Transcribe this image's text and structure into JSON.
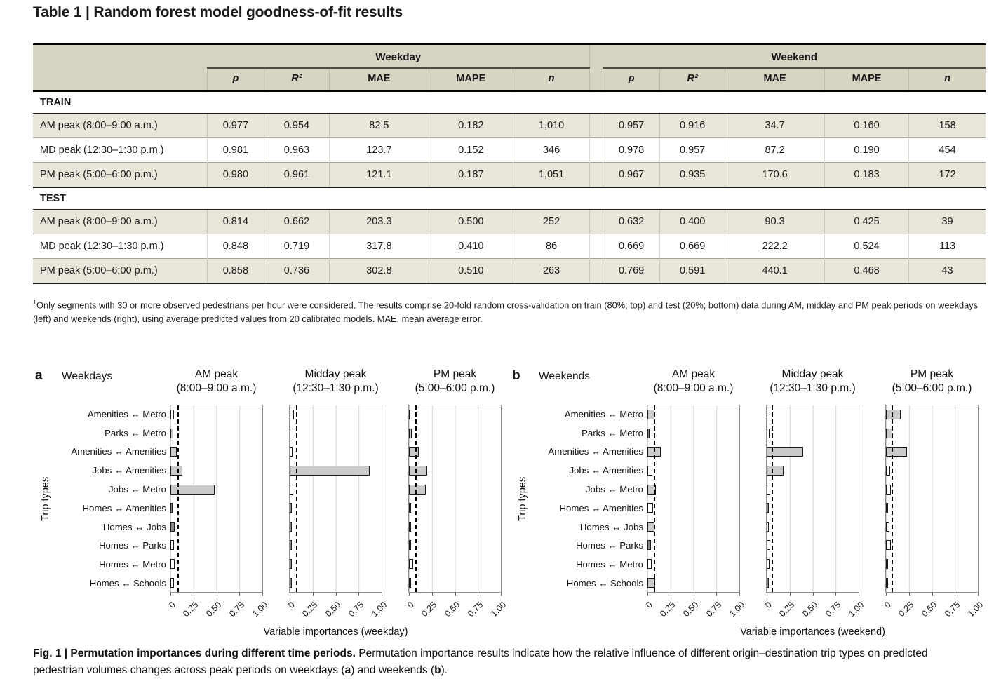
{
  "table": {
    "title": "Table 1 | Random forest model goodness-of-fit results",
    "groups": [
      "Weekday",
      "Weekend"
    ],
    "columns": [
      "ρ",
      "R²",
      "MAE",
      "MAPE",
      "n"
    ],
    "italic_columns": [
      "ρ",
      "R²",
      "n"
    ],
    "sections": [
      {
        "label": "TRAIN",
        "rows": [
          {
            "label": "AM peak (8:00–9:00 a.m.)",
            "shaded": true,
            "weekday": [
              "0.977",
              "0.954",
              "82.5",
              "0.182",
              "1,010"
            ],
            "weekend": [
              "0.957",
              "0.916",
              "34.7",
              "0.160",
              "158"
            ]
          },
          {
            "label": "MD peak (12:30–1:30 p.m.)",
            "shaded": false,
            "weekday": [
              "0.981",
              "0.963",
              "123.7",
              "0.152",
              "346"
            ],
            "weekend": [
              "0.978",
              "0.957",
              "87.2",
              "0.190",
              "454"
            ]
          },
          {
            "label": "PM peak (5:00–6:00 p.m.)",
            "shaded": true,
            "weekday": [
              "0.980",
              "0.961",
              "121.1",
              "0.187",
              "1,051"
            ],
            "weekend": [
              "0.967",
              "0.935",
              "170.6",
              "0.183",
              "172"
            ]
          }
        ]
      },
      {
        "label": "TEST",
        "rows": [
          {
            "label": "AM peak (8:00–9:00 a.m.)",
            "shaded": true,
            "weekday": [
              "0.814",
              "0.662",
              "203.3",
              "0.500",
              "252"
            ],
            "weekend": [
              "0.632",
              "0.400",
              "90.3",
              "0.425",
              "39"
            ]
          },
          {
            "label": "MD peak (12:30–1:30 p.m.)",
            "shaded": false,
            "weekday": [
              "0.848",
              "0.719",
              "317.8",
              "0.410",
              "86"
            ],
            "weekend": [
              "0.669",
              "0.669",
              "222.2",
              "0.524",
              "113"
            ]
          },
          {
            "label": "PM peak (5:00–6:00 p.m.)",
            "shaded": true,
            "weekday": [
              "0.858",
              "0.736",
              "302.8",
              "0.510",
              "263"
            ],
            "weekend": [
              "0.769",
              "0.591",
              "440.1",
              "0.468",
              "43"
            ]
          }
        ]
      }
    ],
    "footnote_sup": "1",
    "footnote_text": "Only segments with 30 or more observed pedestrians per hour were considered. The results comprise 20-fold random cross-validation on train (80%; top) and test (20%; bottom) data during AM, midday and PM peak periods on weekdays (left) and weekends (right), using average predicted values from 20 calibrated models. MAE, mean average error."
  },
  "figure": {
    "ylabel": "Trip types",
    "caption_parts": [
      {
        "text": "Fig. 1 | Permutation importances during different time periods. ",
        "bold": true
      },
      {
        "text": "Permutation importance results indicate how the relative influence of different origin–destination trip types on predicted pedestrian volumes changes across peak periods on weekdays (",
        "bold": false
      },
      {
        "text": "a",
        "bold": true
      },
      {
        "text": ") and weekends (",
        "bold": false
      },
      {
        "text": "b",
        "bold": true
      },
      {
        "text": ").",
        "bold": false
      }
    ]
  },
  "colors": {
    "header_beige": "#d7d4c3",
    "row_shade": "#e9e6da",
    "bar_fills": {
      "white": "#ffffff",
      "gray": "#cbcbcb",
      "dark": "#8a8a8a"
    },
    "bar_border": "#1a1a1a",
    "gridline": "#d2d2d2"
  },
  "chart_data": {
    "type": "bar",
    "orientation": "horizontal",
    "grid": true,
    "xlim": [
      0,
      1
    ],
    "xtick_values": [
      0,
      0.25,
      0.5,
      0.75,
      1.0
    ],
    "xtick_labels": [
      "0",
      "0.25",
      "0.50",
      "0.75",
      "1.00"
    ],
    "categories": [
      "Amenities ↔ Metro",
      "Parks ↔ Metro",
      "Amenities ↔ Amenities",
      "Jobs ↔ Amenities",
      "Jobs ↔ Metro",
      "Homes ↔ Amenities",
      "Homes ↔ Jobs",
      "Homes ↔ Parks",
      "Homes ↔ Metro",
      "Homes ↔ Schools"
    ],
    "panels": [
      {
        "key": "weekdays",
        "letter": "a",
        "name": "Weekdays",
        "xlabel": "Variable importances (weekday)",
        "charts": [
          {
            "key": "am",
            "title": "AM peak",
            "subtitle": "(8:00–9:00 a.m.)",
            "dashed_x": 0.075,
            "values": [
              0.04,
              0.03,
              0.07,
              0.13,
              0.48,
              0.025,
              0.045,
              0.04,
              0.045,
              0.035
            ],
            "fills": [
              "white",
              "gray",
              "gray",
              "gray",
              "gray",
              "dark",
              "dark",
              "white",
              "white",
              "white"
            ]
          },
          {
            "key": "midday",
            "title": "Midday peak",
            "subtitle": "(12:30–1:30 p.m.)",
            "dashed_x": 0.07,
            "values": [
              0.045,
              0.035,
              0.03,
              0.87,
              0.04,
              0.02,
              0.015,
              0.025,
              0.013,
              0.015
            ],
            "fills": [
              "white",
              "white",
              "white",
              "gray",
              "white",
              "dark",
              "dark",
              "dark",
              "dark",
              "dark"
            ]
          },
          {
            "key": "pm",
            "title": "PM peak",
            "subtitle": "(5:00–6:00 p.m.)",
            "dashed_x": 0.07,
            "values": [
              0.04,
              0.03,
              0.11,
              0.2,
              0.18,
              0.018,
              0.022,
              0.015,
              0.048,
              0.013
            ],
            "fills": [
              "white",
              "gray",
              "gray",
              "gray",
              "gray",
              "dark",
              "dark",
              "dark",
              "white",
              "dark"
            ]
          }
        ]
      },
      {
        "key": "weekends",
        "letter": "b",
        "name": "Weekends",
        "xlabel": "Variable importances (weekend)",
        "charts": [
          {
            "key": "am",
            "title": "AM peak",
            "subtitle": "(8:00–9:00 a.m.)",
            "dashed_x": 0.065,
            "values": [
              0.073,
              0.025,
              0.145,
              0.054,
              0.088,
              0.059,
              0.078,
              0.039,
              0.049,
              0.083
            ],
            "fills": [
              "gray",
              "dark",
              "gray",
              "white",
              "gray",
              "white",
              "gray",
              "dark",
              "white",
              "gray"
            ]
          },
          {
            "key": "midday",
            "title": "Midday peak",
            "subtitle": "(12:30–1:30 p.m.)",
            "dashed_x": 0.05,
            "values": [
              0.04,
              0.028,
              0.4,
              0.18,
              0.04,
              0.015,
              0.025,
              0.035,
              0.028,
              0.015
            ],
            "fills": [
              "white",
              "white",
              "gray",
              "gray",
              "white",
              "dark",
              "white",
              "white",
              "white",
              "dark"
            ]
          },
          {
            "key": "pm",
            "title": "PM peak",
            "subtitle": "(5:00–6:00 p.m.)",
            "dashed_x": 0.06,
            "values": [
              0.16,
              0.065,
              0.23,
              0.043,
              0.053,
              0.018,
              0.04,
              0.05,
              0.02,
              0.018
            ],
            "fills": [
              "gray",
              "gray",
              "gray",
              "white",
              "white",
              "dark",
              "white",
              "white",
              "dark",
              "dark"
            ]
          }
        ]
      }
    ]
  }
}
